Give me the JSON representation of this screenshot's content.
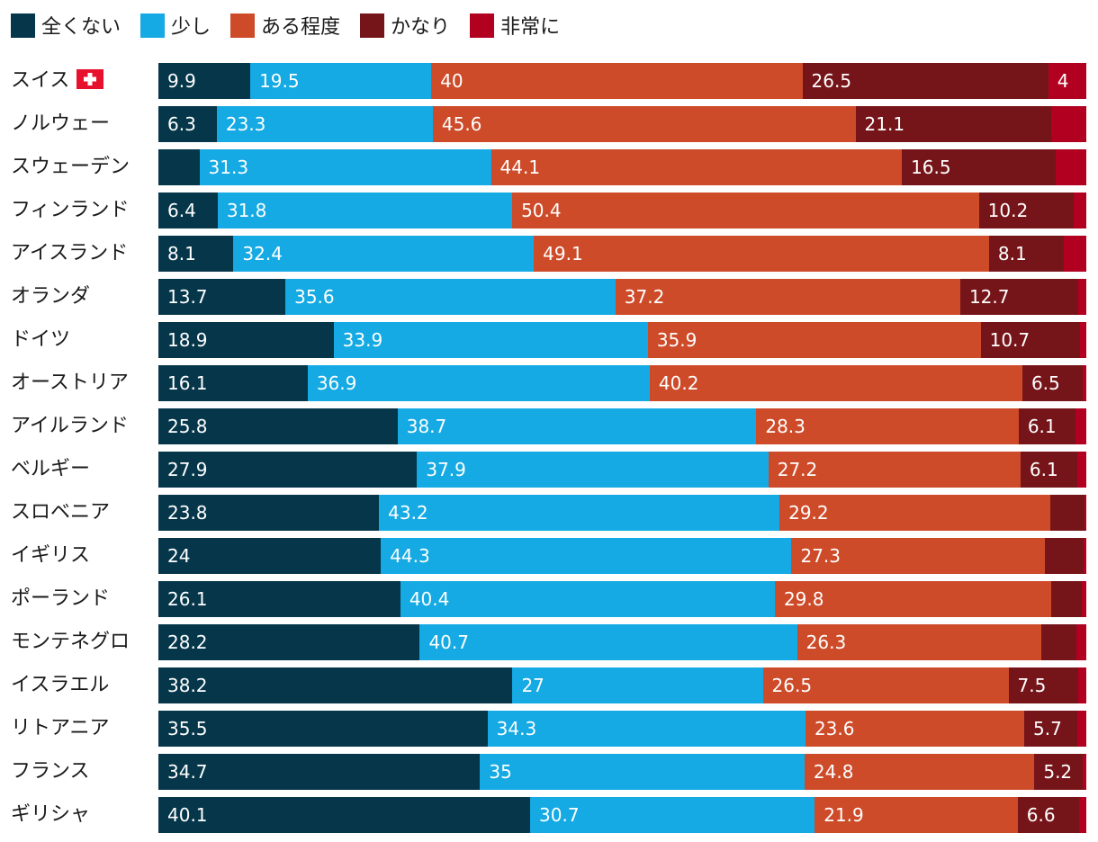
{
  "chart_data": {
    "type": "bar",
    "orientation": "horizontal",
    "stacked": true,
    "legend_position": "top-left",
    "legend": [
      "全くない",
      "少し",
      "ある程度",
      "かなり",
      "非常に"
    ],
    "colors": [
      "#05364a",
      "#15aae3",
      "#cd4b29",
      "#761519",
      "#b10020"
    ],
    "categories": [
      "スイス",
      "ノルウェー",
      "スウェーデン",
      "フィンランド",
      "アイスランド",
      "オランダ",
      "ドイツ",
      "オーストリア",
      "アイルランド",
      "ベルギー",
      "スロベニア",
      "イギリス",
      "ポーランド",
      "モンテネグロ",
      "イスラエル",
      "リトアニア",
      "フランス",
      "ギリシャ"
    ],
    "series": [
      {
        "name": "全くない",
        "values": [
          9.9,
          6.3,
          4.4,
          6.4,
          8.1,
          13.7,
          18.9,
          16.1,
          25.8,
          27.9,
          23.8,
          24,
          26.1,
          28.2,
          38.2,
          35.5,
          34.7,
          40.1
        ]
      },
      {
        "name": "少し",
        "values": [
          19.5,
          23.3,
          31.3,
          31.8,
          32.4,
          35.6,
          33.9,
          36.9,
          38.7,
          37.9,
          43.2,
          44.3,
          40.4,
          40.7,
          27,
          34.3,
          35,
          30.7
        ]
      },
      {
        "name": "ある程度",
        "values": [
          40,
          45.6,
          44.1,
          50.4,
          49.1,
          37.2,
          35.9,
          40.2,
          28.3,
          27.2,
          29.2,
          27.3,
          29.8,
          26.3,
          26.5,
          23.6,
          24.8,
          21.9
        ]
      },
      {
        "name": "かなり",
        "values": [
          26.5,
          21.1,
          16.5,
          10.2,
          8.1,
          12.7,
          10.7,
          6.5,
          6.1,
          6.1,
          3.7,
          4.2,
          3.3,
          3.8,
          7.5,
          5.7,
          5.2,
          6.6
        ]
      },
      {
        "name": "非常に",
        "values": [
          4,
          3.7,
          3.2,
          1.3,
          2.3,
          0.8,
          0.6,
          0.3,
          1.1,
          0.9,
          0.1,
          0.2,
          0.4,
          1,
          0.8,
          0.9,
          0.3,
          0.7
        ]
      }
    ],
    "data_labels": [
      [
        "9.9",
        "19.5",
        "40",
        "26.5",
        "4"
      ],
      [
        "6.3",
        "23.3",
        "45.6",
        "21.1",
        ""
      ],
      [
        "",
        "31.3",
        "44.1",
        "16.5",
        ""
      ],
      [
        "6.4",
        "31.8",
        "50.4",
        "10.2",
        ""
      ],
      [
        "8.1",
        "32.4",
        "49.1",
        "8.1",
        ""
      ],
      [
        "13.7",
        "35.6",
        "37.2",
        "12.7",
        ""
      ],
      [
        "18.9",
        "33.9",
        "35.9",
        "10.7",
        ""
      ],
      [
        "16.1",
        "36.9",
        "40.2",
        "6.5",
        ""
      ],
      [
        "25.8",
        "38.7",
        "28.3",
        "6.1",
        ""
      ],
      [
        "27.9",
        "37.9",
        "27.2",
        "6.1",
        ""
      ],
      [
        "23.8",
        "43.2",
        "29.2",
        "",
        ""
      ],
      [
        "24",
        "44.3",
        "27.3",
        "",
        ""
      ],
      [
        "26.1",
        "40.4",
        "29.8",
        "",
        ""
      ],
      [
        "28.2",
        "40.7",
        "26.3",
        "",
        ""
      ],
      [
        "38.2",
        "27",
        "26.5",
        "7.5",
        ""
      ],
      [
        "35.5",
        "34.3",
        "23.6",
        "5.7",
        ""
      ],
      [
        "34.7",
        "35",
        "24.8",
        "5.2",
        ""
      ],
      [
        "40.1",
        "30.7",
        "21.9",
        "6.6",
        ""
      ]
    ],
    "xlim": [
      0,
      100
    ],
    "grid": false,
    "title": "",
    "xlabel": "",
    "ylabel": "",
    "annotations": [
      {
        "row": "スイス",
        "icon": "swiss-flag-icon",
        "icon_color": "#e8112d"
      }
    ]
  }
}
